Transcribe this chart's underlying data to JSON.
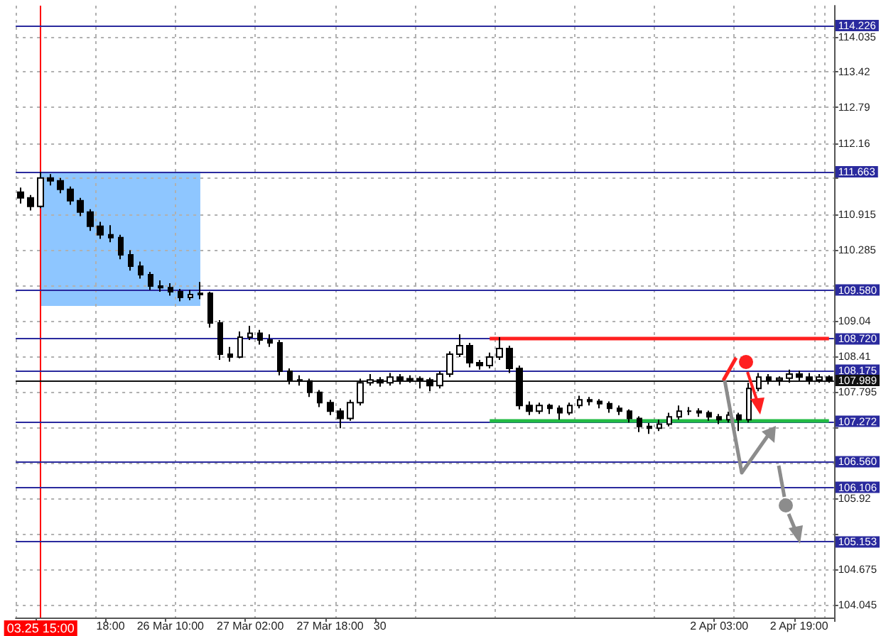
{
  "chart_data": {
    "type": "candlestick",
    "categories": [
      null,
      null,
      "03.25 15:00",
      null,
      null,
      null,
      null,
      null,
      null,
      "18:00",
      null,
      null,
      null,
      null,
      null,
      "26 Mar 10:00",
      null,
      null,
      null,
      null,
      null,
      null,
      null,
      "27 Mar 02:00",
      null,
      null,
      null,
      null,
      null,
      null,
      null,
      "27 Mar 18:00",
      null,
      null,
      null,
      null,
      "30",
      null,
      null,
      null,
      null,
      null,
      null,
      null,
      null,
      null,
      null,
      null,
      null,
      null,
      null,
      null,
      null,
      null,
      null,
      null,
      null,
      null,
      null,
      null,
      null,
      null,
      null,
      null,
      null,
      null,
      null,
      null,
      null,
      null,
      "2 Apr 03:00",
      null,
      null,
      null,
      null,
      null,
      null,
      null,
      "2 Apr 19:00",
      null,
      null,
      null
    ],
    "series": [
      {
        "color": "#000000",
        "ohlc": [
          [
            111.3,
            111.38,
            111.1,
            111.2
          ],
          [
            111.2,
            111.25,
            110.98,
            111.05
          ],
          [
            111.05,
            111.66,
            111.02,
            111.55
          ],
          [
            111.55,
            111.62,
            111.42,
            111.5
          ],
          [
            111.5,
            111.55,
            111.28,
            111.35
          ],
          [
            111.35,
            111.4,
            111.08,
            111.15
          ],
          [
            111.15,
            111.2,
            110.88,
            110.95
          ],
          [
            110.95,
            111.0,
            110.62,
            110.7
          ],
          [
            110.7,
            110.78,
            110.48,
            110.55
          ],
          [
            110.55,
            110.72,
            110.42,
            110.5
          ],
          [
            110.5,
            110.55,
            110.12,
            110.2
          ],
          [
            110.2,
            110.28,
            109.92,
            110.0
          ],
          [
            110.0,
            110.08,
            109.78,
            109.85
          ],
          [
            109.85,
            109.9,
            109.58,
            109.65
          ],
          [
            109.65,
            109.75,
            109.55,
            109.62
          ],
          [
            109.62,
            109.7,
            109.48,
            109.55
          ],
          [
            109.55,
            109.6,
            109.38,
            109.45
          ],
          [
            109.45,
            109.58,
            109.4,
            109.5
          ],
          [
            109.5,
            109.72,
            109.42,
            109.52
          ],
          [
            109.52,
            109.55,
            108.92,
            109.0
          ],
          [
            109.0,
            109.05,
            108.35,
            108.45
          ],
          [
            108.45,
            108.58,
            108.32,
            108.4
          ],
          [
            108.4,
            108.85,
            108.38,
            108.75
          ],
          [
            108.75,
            108.95,
            108.7,
            108.82
          ],
          [
            108.82,
            108.88,
            108.62,
            108.7
          ],
          [
            108.7,
            108.8,
            108.58,
            108.65
          ],
          [
            108.65,
            108.7,
            108.08,
            108.15
          ],
          [
            108.15,
            108.2,
            107.92,
            108.0
          ],
          [
            108.0,
            108.08,
            107.9,
            107.98
          ],
          [
            107.98,
            108.02,
            107.7,
            107.78
          ],
          [
            107.78,
            107.82,
            107.52,
            107.6
          ],
          [
            107.6,
            107.65,
            107.38,
            107.45
          ],
          [
            107.45,
            107.5,
            107.15,
            107.32
          ],
          [
            107.32,
            107.65,
            107.28,
            107.6
          ],
          [
            107.6,
            108.02,
            107.55,
            107.95
          ],
          [
            107.95,
            108.1,
            107.9,
            108.0
          ],
          [
            108.0,
            108.05,
            107.88,
            107.95
          ],
          [
            107.95,
            108.12,
            107.9,
            108.05
          ],
          [
            108.05,
            108.1,
            107.92,
            108.0
          ],
          [
            108.0,
            108.08,
            107.95,
            108.02
          ],
          [
            108.02,
            108.06,
            107.85,
            108.0
          ],
          [
            108.0,
            108.04,
            107.8,
            107.9
          ],
          [
            107.9,
            108.15,
            107.85,
            108.1
          ],
          [
            108.1,
            108.5,
            108.05,
            108.45
          ],
          [
            108.45,
            108.8,
            108.4,
            108.6
          ],
          [
            108.6,
            108.65,
            108.22,
            108.3
          ],
          [
            108.3,
            108.35,
            108.18,
            108.25
          ],
          [
            108.25,
            108.48,
            108.2,
            108.4
          ],
          [
            108.4,
            108.75,
            108.35,
            108.55
          ],
          [
            108.55,
            108.6,
            108.12,
            108.2
          ],
          [
            108.2,
            108.25,
            107.48,
            107.55
          ],
          [
            107.55,
            107.62,
            107.38,
            107.45
          ],
          [
            107.45,
            107.6,
            107.4,
            107.55
          ],
          [
            107.55,
            107.58,
            107.4,
            107.5
          ],
          [
            107.5,
            107.55,
            107.3,
            107.42
          ],
          [
            107.42,
            107.6,
            107.38,
            107.55
          ],
          [
            107.55,
            107.72,
            107.5,
            107.65
          ],
          [
            107.65,
            107.7,
            107.55,
            107.62
          ],
          [
            107.62,
            107.66,
            107.5,
            107.58
          ],
          [
            107.58,
            107.62,
            107.42,
            107.5
          ],
          [
            107.5,
            107.55,
            107.38,
            107.45
          ],
          [
            107.45,
            107.48,
            107.25,
            107.32
          ],
          [
            107.32,
            107.36,
            107.08,
            107.18
          ],
          [
            107.18,
            107.24,
            107.05,
            107.15
          ],
          [
            107.15,
            107.3,
            107.1,
            107.22
          ],
          [
            107.22,
            107.42,
            107.18,
            107.35
          ],
          [
            107.35,
            107.55,
            107.3,
            107.45
          ],
          [
            107.45,
            107.52,
            107.38,
            107.45
          ],
          [
            107.45,
            107.5,
            107.35,
            107.42
          ],
          [
            107.42,
            107.46,
            107.28,
            107.35
          ],
          [
            107.35,
            107.4,
            107.22,
            107.3
          ],
          [
            107.3,
            107.44,
            107.25,
            107.38
          ],
          [
            107.38,
            107.42,
            107.1,
            107.3
          ],
          [
            107.3,
            107.95,
            107.25,
            107.85
          ],
          [
            107.85,
            108.12,
            107.8,
            108.05
          ],
          [
            108.05,
            108.1,
            107.92,
            108.0
          ],
          [
            108.0,
            108.06,
            107.9,
            108.03
          ],
          [
            108.03,
            108.18,
            107.95,
            108.1
          ],
          [
            108.1,
            108.16,
            107.98,
            108.05
          ],
          [
            108.05,
            108.12,
            107.92,
            108.0
          ],
          [
            108.0,
            108.1,
            107.95,
            108.05
          ],
          [
            108.05,
            108.08,
            107.95,
            107.99
          ]
        ]
      }
    ],
    "ylim": [
      103.82,
      114.58
    ],
    "yticks": [
      114.035,
      113.42,
      112.79,
      112.16,
      {
        "value": 111.545,
        "label": null
      },
      110.915,
      110.285,
      {
        "value": 109.66,
        "label": null
      },
      109.04,
      108.41,
      107.795,
      {
        "value": 107.165,
        "label": null
      },
      {
        "value": 106.545,
        "label": null
      },
      105.92,
      {
        "value": 105.29,
        "label": null
      },
      104.675,
      104.045
    ],
    "grid": true,
    "ref_lines": [
      {
        "axis": "x",
        "value": "03.25 15:00",
        "color": "#ff0000"
      },
      {
        "axis": "y",
        "value": 114.226,
        "label": "114.226",
        "color": "#2a2a9e"
      },
      {
        "axis": "y",
        "value": 111.663,
        "label": "111.663",
        "color": "#2a2a9e"
      },
      {
        "axis": "y",
        "value": 109.58,
        "label": "109.580",
        "color": "#2a2a9e"
      },
      {
        "axis": "y",
        "value": 108.72,
        "label": "108.720",
        "color": "#2a2a9e"
      },
      {
        "axis": "y",
        "value": 108.175,
        "label": "108.175",
        "color": "#2a2a9e"
      },
      {
        "axis": "y",
        "value": 107.989,
        "label": "107.989",
        "color": "#111111"
      },
      {
        "axis": "y",
        "value": 107.272,
        "label": "107.272",
        "color": "#2a2a9e"
      },
      {
        "axis": "y",
        "value": 106.56,
        "label": "106.560",
        "color": "#2a2a9e"
      },
      {
        "axis": "y",
        "value": 106.106,
        "label": "106.106",
        "color": "#2a2a9e"
      },
      {
        "axis": "y",
        "value": 105.153,
        "label": "105.153",
        "color": "#2a2a9e"
      },
      {
        "axis": "y",
        "value": 108.72,
        "color": "#ff2020"
      },
      {
        "axis": "y",
        "value": 107.272,
        "color": "#22bb44"
      }
    ],
    "bands": [
      {
        "axis": "y",
        "from": 109.3,
        "to": 111.663,
        "color": "#8ec6ff"
      }
    ]
  }
}
